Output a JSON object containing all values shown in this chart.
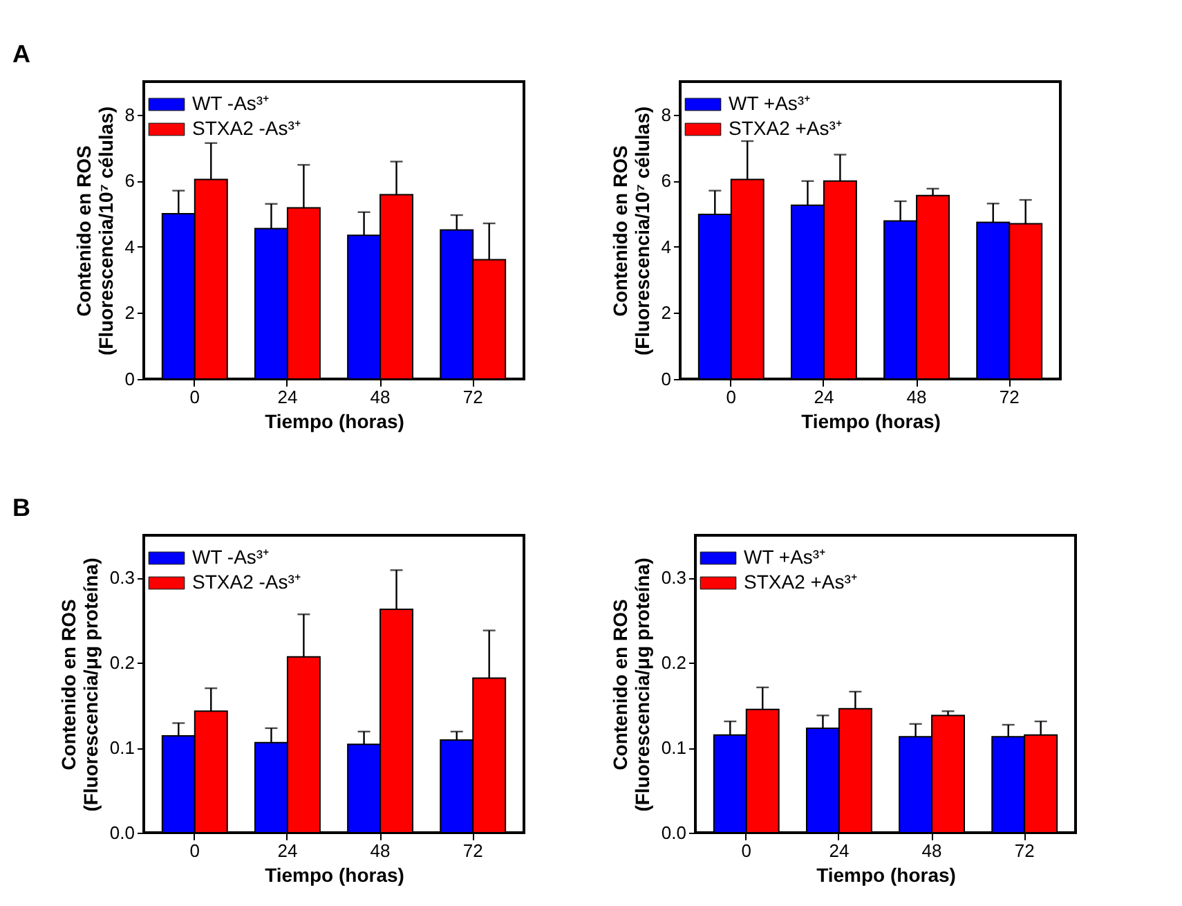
{
  "chart_data": [
    {
      "type": "bar",
      "annotations": [
        "A"
      ],
      "xlabel": "Tiempo (horas)",
      "ylabel": "Contenido en ROS\n(Fluorescencia/10⁷ células)",
      "categories": [
        "0",
        "24",
        "48",
        "72"
      ],
      "ylim": [
        0,
        9
      ],
      "yticks": [
        0,
        2,
        4,
        6,
        8
      ],
      "legend": "top left",
      "grid": false,
      "series": [
        {
          "name": "WT -As³⁺",
          "color": "#0000ff",
          "values": [
            5.0,
            4.55,
            4.35,
            4.51
          ],
          "errors": [
            0.7,
            0.75,
            0.7,
            0.45
          ]
        },
        {
          "name": "STXA2 -As³⁺",
          "color": "#ff0000",
          "values": [
            6.04,
            5.18,
            5.58,
            3.61
          ],
          "errors": [
            1.1,
            1.3,
            1.0,
            1.1
          ]
        }
      ]
    },
    {
      "type": "bar",
      "xlabel": "Tiempo (horas)",
      "ylabel": "Contenido en ROS\n(Fluorescencia/10⁷ células)",
      "categories": [
        "0",
        "24",
        "48",
        "72"
      ],
      "ylim": [
        0,
        9
      ],
      "yticks": [
        0,
        2,
        4,
        6,
        8
      ],
      "legend": "top left",
      "grid": false,
      "series": [
        {
          "name": "WT +As³⁺",
          "color": "#0000ff",
          "values": [
            4.98,
            5.26,
            4.78,
            4.74
          ],
          "errors": [
            0.72,
            0.73,
            0.6,
            0.57
          ]
        },
        {
          "name": "STXA2 +As³⁺",
          "color": "#ff0000",
          "values": [
            6.04,
            5.99,
            5.55,
            4.7
          ],
          "errors": [
            1.16,
            0.8,
            0.21,
            0.72
          ]
        }
      ]
    },
    {
      "type": "bar",
      "annotations": [
        "B"
      ],
      "xlabel": "Tiempo (horas)",
      "ylabel": "Contenido en ROS\n(Fluorescencia/μg proteína)",
      "categories": [
        "0",
        "24",
        "48",
        "72"
      ],
      "ylim": [
        0,
        0.35
      ],
      "yticks": [
        {
          "value": 0,
          "label": "0.0"
        },
        0.1,
        0.2,
        0.3
      ],
      "legend": "top left",
      "grid": false,
      "series": [
        {
          "name": "WT -As³⁺",
          "color": "#0000ff",
          "values": [
            0.114,
            0.106,
            0.104,
            0.109
          ],
          "errors": [
            0.015,
            0.017,
            0.015,
            0.01
          ]
        },
        {
          "name": "STXA2 -As³⁺",
          "color": "#ff0000",
          "values": [
            0.143,
            0.207,
            0.263,
            0.182
          ],
          "errors": [
            0.027,
            0.05,
            0.046,
            0.056
          ]
        }
      ]
    },
    {
      "type": "bar",
      "xlabel": "Tiempo (horas)",
      "ylabel": "Contenido en ROS\n(Fluorescencia/μg proteína)",
      "categories": [
        "0",
        "24",
        "48",
        "72"
      ],
      "ylim": [
        0,
        0.35
      ],
      "yticks": [
        {
          "value": 0,
          "label": "0.0"
        },
        0.1,
        0.2,
        0.3
      ],
      "legend": "top left",
      "grid": false,
      "series": [
        {
          "name": "WT +As³⁺",
          "color": "#0000ff",
          "values": [
            0.115,
            0.123,
            0.113,
            0.113
          ],
          "errors": [
            0.016,
            0.015,
            0.015,
            0.014
          ]
        },
        {
          "name": "STXA2 +As³⁺",
          "color": "#ff0000",
          "values": [
            0.145,
            0.146,
            0.138,
            0.115
          ],
          "errors": [
            0.026,
            0.02,
            0.005,
            0.016
          ]
        }
      ]
    }
  ]
}
